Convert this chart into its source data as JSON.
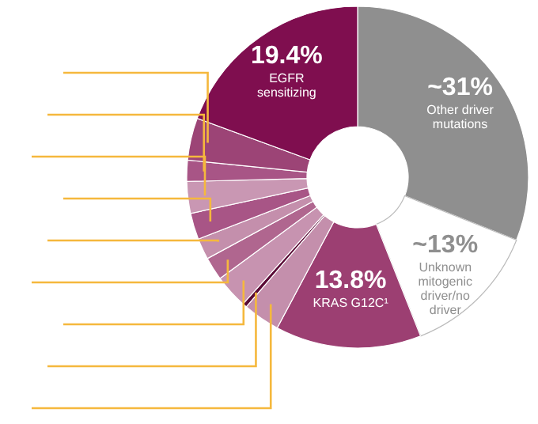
{
  "chart_data": {
    "type": "donut",
    "categories": [
      "Other driver mutations",
      "Unknown mitogenic driver/no driver",
      "KRAS G12C¹",
      null,
      null,
      null,
      null,
      null,
      null,
      null,
      null,
      null,
      "EGFR sensitizing"
    ],
    "values": [
      31,
      13,
      13.8,
      3.5,
      0.4,
      3.2,
      2.2,
      2.0,
      2.5,
      3.0,
      2.0,
      4.0,
      19.4
    ],
    "value_labels": [
      "~31%",
      "~13%",
      "13.8%",
      null,
      null,
      null,
      null,
      null,
      null,
      null,
      null,
      null,
      "19.4%"
    ],
    "colors": [
      "#8f8f8f",
      "#ffffff",
      "#9c3f72",
      "#c48fac",
      "#5a0a36",
      "#c793b0",
      "#b0668f",
      "#c48fac",
      "#a85586",
      "#c997b3",
      "#a85586",
      "#9c4476",
      "#7f0e4f"
    ]
  }
}
